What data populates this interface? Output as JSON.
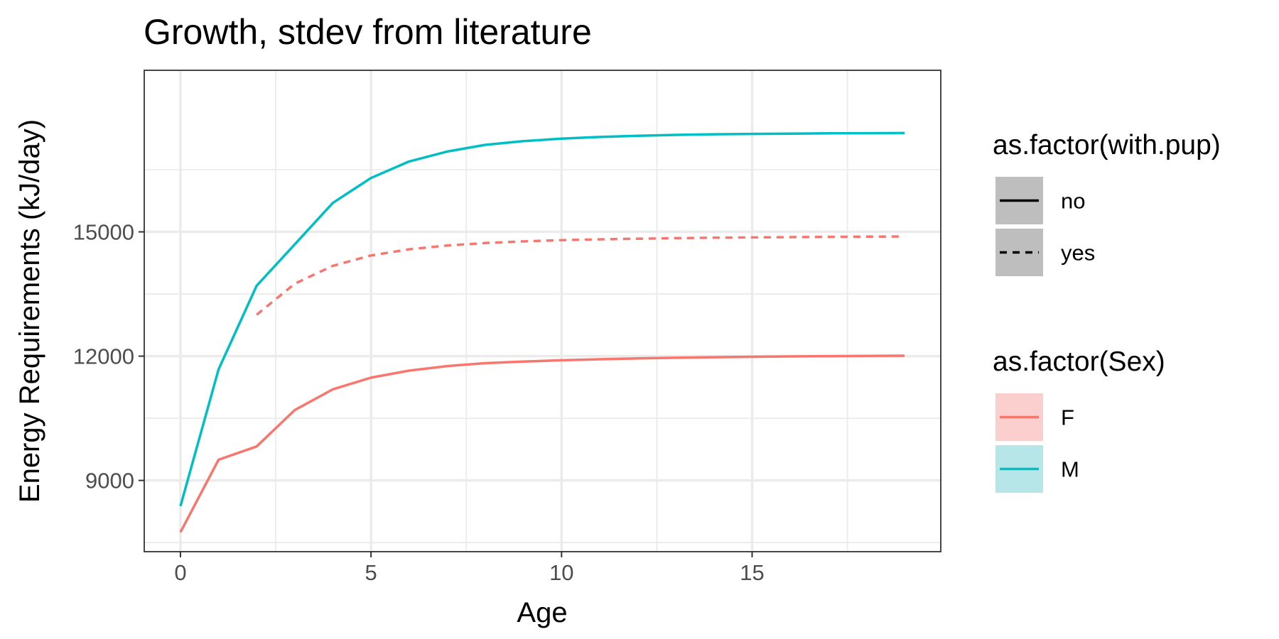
{
  "chart_data": {
    "type": "line",
    "title": "Growth, stdev from literature",
    "xlabel": "Age",
    "ylabel": "Energy Requirements (kJ/day)",
    "xlim": [
      -0.95,
      19.95
    ],
    "ylim": [
      7280,
      18900
    ],
    "x_ticks": [
      0,
      5,
      10,
      15
    ],
    "y_ticks": [
      9000,
      12000,
      15000
    ],
    "x_tick_labels": [
      "0",
      "5",
      "10",
      "15"
    ],
    "y_tick_labels": [
      "9000",
      "12000",
      "15000"
    ],
    "grid": true,
    "legend_position": "right",
    "series": [
      {
        "sex": "F",
        "with_pup": "no",
        "color": "#F8766D",
        "linetype": "solid",
        "x": [
          0,
          1,
          2,
          3,
          4,
          5,
          6,
          7,
          8,
          9,
          10,
          11,
          12,
          13,
          14,
          15,
          16,
          17,
          18,
          19
        ],
        "y": [
          7750,
          9500,
          9820,
          10700,
          11200,
          11480,
          11650,
          11760,
          11830,
          11870,
          11900,
          11925,
          11945,
          11960,
          11975,
          11985,
          11993,
          12000,
          12005,
          12010
        ]
      },
      {
        "sex": "F",
        "with_pup": "yes",
        "color": "#F8766D",
        "linetype": "dashed",
        "x": [
          2,
          3,
          4,
          5,
          6,
          7,
          8,
          9,
          10,
          11,
          12,
          13,
          14,
          15,
          16,
          17,
          18,
          19
        ],
        "y": [
          13000,
          13750,
          14180,
          14430,
          14580,
          14670,
          14730,
          14770,
          14800,
          14820,
          14835,
          14848,
          14858,
          14866,
          14873,
          14879,
          14884,
          14888
        ]
      },
      {
        "sex": "M",
        "with_pup": "no",
        "color": "#00BFC4",
        "linetype": "solid",
        "x": [
          0,
          1,
          2,
          3,
          4,
          5,
          6,
          7,
          8,
          9,
          10,
          11,
          12,
          13,
          14,
          15,
          16,
          17,
          18,
          19
        ],
        "y": [
          8380,
          11680,
          13700,
          14700,
          15700,
          16300,
          16700,
          16940,
          17100,
          17190,
          17250,
          17290,
          17320,
          17340,
          17355,
          17365,
          17372,
          17378,
          17382,
          17385
        ]
      }
    ],
    "legends": [
      {
        "title": "as.factor(with.pup)",
        "items": [
          {
            "label": "no",
            "linetype": "solid",
            "color": "#000000",
            "fill": "#bebebe"
          },
          {
            "label": "yes",
            "linetype": "dashed",
            "color": "#000000",
            "fill": "#bebebe"
          }
        ]
      },
      {
        "title": "as.factor(Sex)",
        "items": [
          {
            "label": "F",
            "linetype": "solid",
            "color": "#F8766D",
            "fill": "#fbcfcd"
          },
          {
            "label": "M",
            "linetype": "solid",
            "color": "#00BFC4",
            "fill": "#b7e6e8"
          }
        ]
      }
    ]
  }
}
